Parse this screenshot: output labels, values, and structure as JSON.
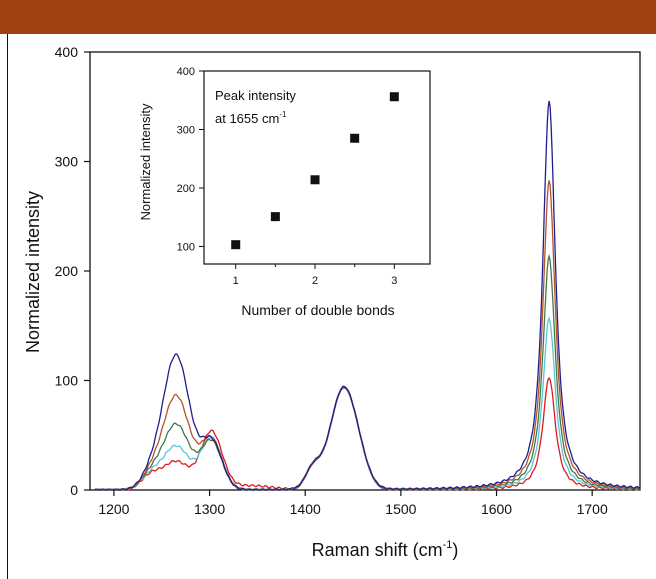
{
  "colors": {
    "band": "#a0420f",
    "axis": "#111111",
    "series": [
      "#1f1f8f",
      "#b5532a",
      "#3f7a46",
      "#5bc4d9",
      "#e01a1a"
    ]
  },
  "chart_data": [
    {
      "type": "line",
      "title": "",
      "xlabel": "Raman shift (cm⁻¹)",
      "xlabel_main": "Raman shift (cm",
      "xlabel_sup": "-1",
      "xlabel_tail": ")",
      "ylabel": "Normalized intensity",
      "xlim": [
        1175,
        1750
      ],
      "ylim": [
        0,
        400
      ],
      "xticks": [
        1200,
        1300,
        1400,
        1500,
        1600,
        1700
      ],
      "yticks": [
        0,
        100,
        200,
        300,
        400
      ],
      "grid": false,
      "legend": "none",
      "peaks": {
        "description_free": true,
        "p1265": [
          123,
          86,
          60,
          40,
          26
        ],
        "p1300": [
          44,
          46,
          44,
          47,
          52
        ],
        "p1440": [
          100,
          100,
          100,
          100,
          100
        ],
        "p1655": [
          355,
          282,
          213,
          157,
          103
        ]
      }
    },
    {
      "type": "scatter",
      "title": "",
      "annotation_line1": "Peak intensity",
      "annotation_line2_main": "at 1655 cm",
      "annotation_line2_sup": "-1",
      "xlabel": "Number of double bonds",
      "ylabel": "Normalized intensity",
      "xlim": [
        0.6,
        3.45
      ],
      "ylim": [
        70,
        400
      ],
      "xticks": [
        1,
        2,
        3
      ],
      "yticks": [
        100,
        200,
        300,
        400
      ],
      "x": [
        1,
        1.5,
        2,
        2.5,
        3
      ],
      "y": [
        103,
        151,
        214,
        285,
        356
      ],
      "grid": false,
      "legend": "none"
    }
  ]
}
